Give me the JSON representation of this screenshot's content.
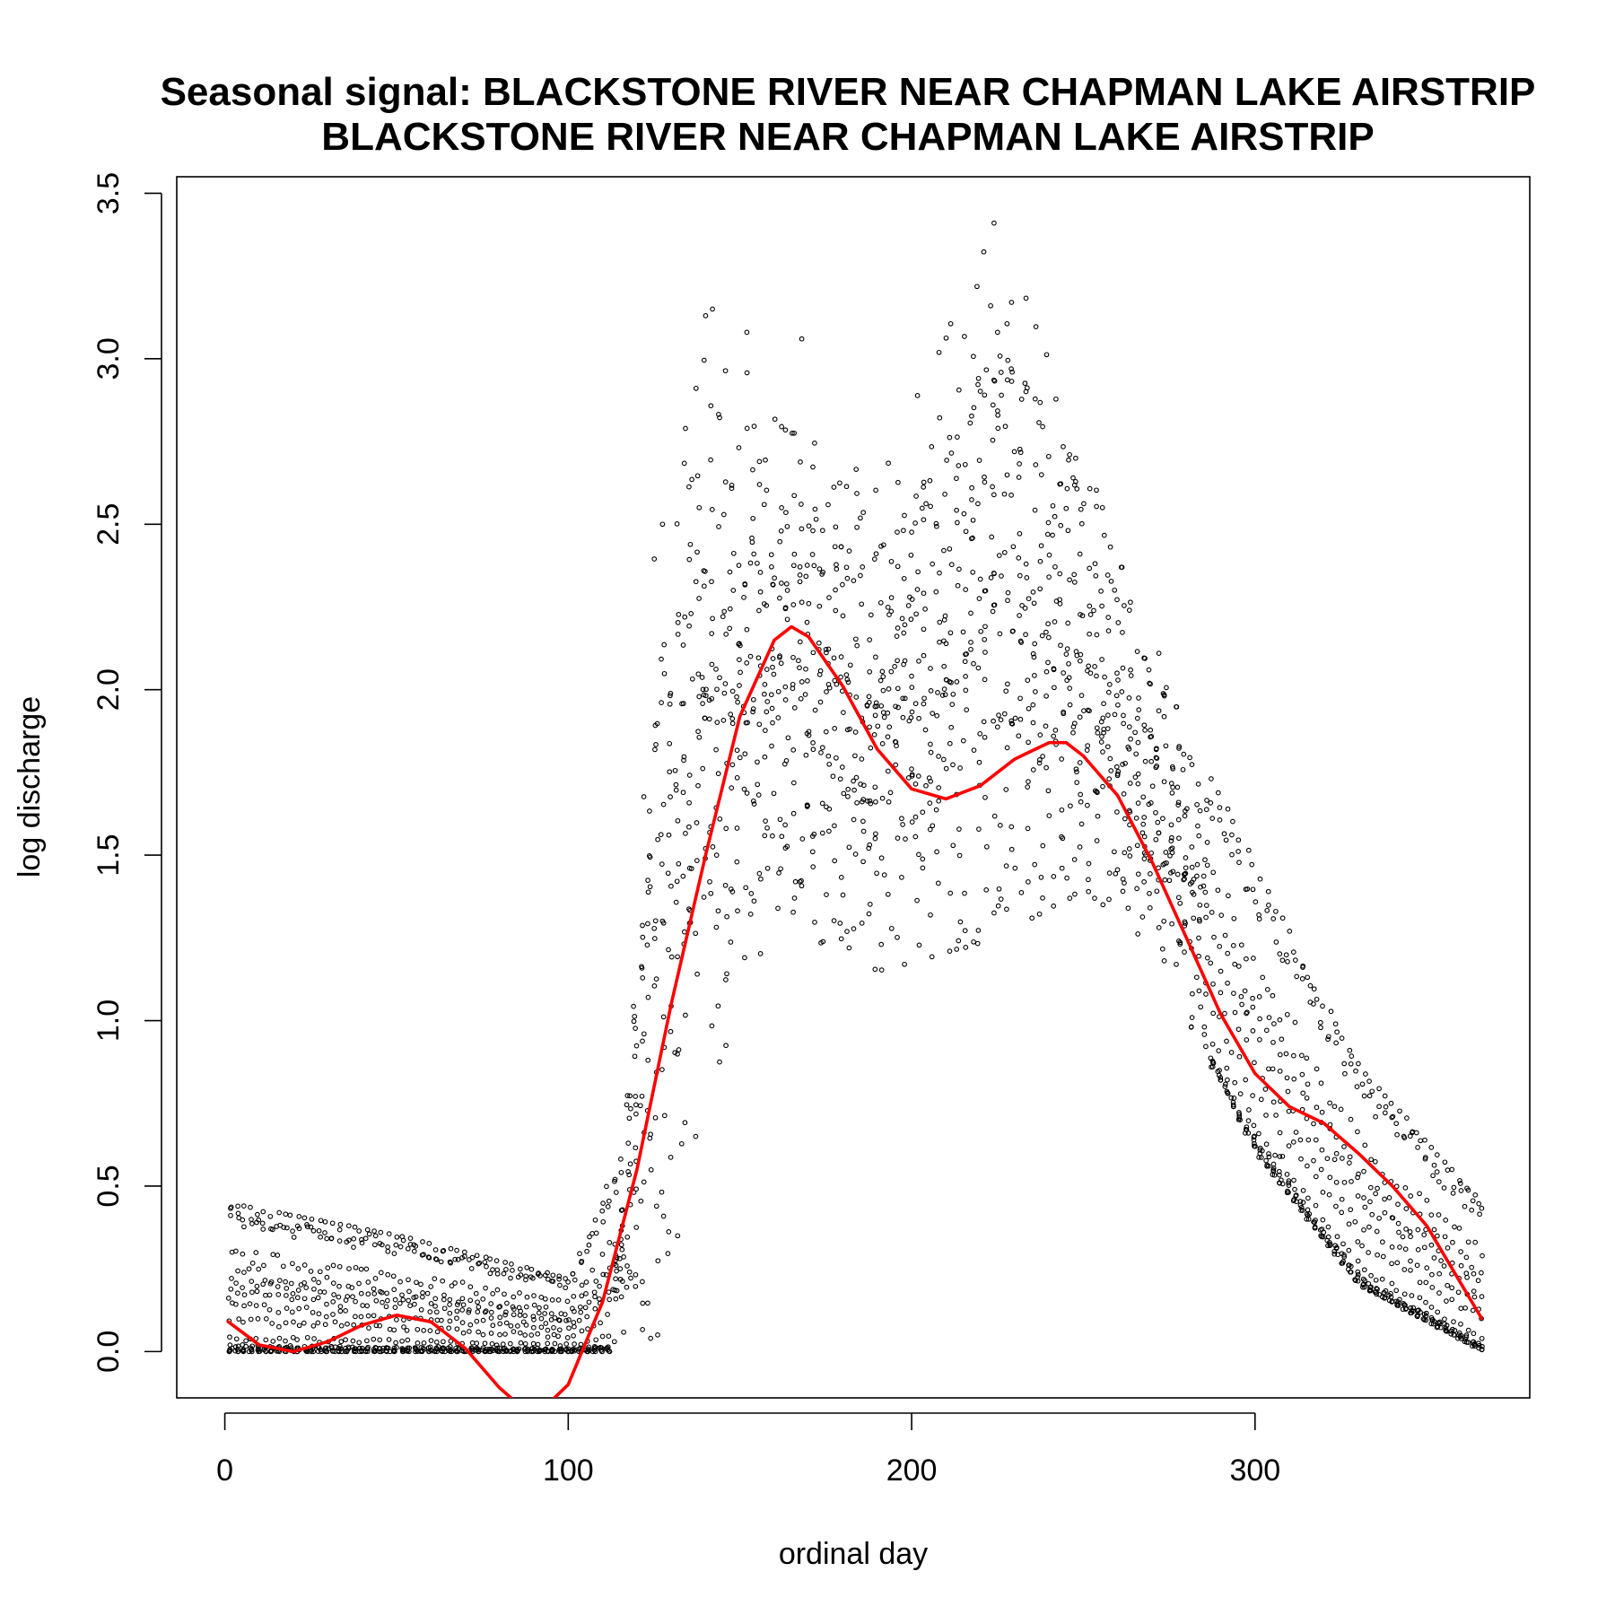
{
  "chart_data": {
    "type": "scatter",
    "title": "Seasonal signal: BLACKSTONE RIVER NEAR CHAPMAN LAKE AIRSTRIP",
    "subtitle": "BLACKSTONE RIVER NEAR CHAPMAN LAKE AIRSTRIP",
    "xlabel": "ordinal day",
    "ylabel": "log discharge",
    "xlim": [
      -14,
      380
    ],
    "ylim": [
      -0.14,
      3.55
    ],
    "xticks": [
      0,
      100,
      200,
      300
    ],
    "xtick_labels": [
      "0",
      "100",
      "200",
      "300"
    ],
    "yticks": [
      0.0,
      0.5,
      1.0,
      1.5,
      2.0,
      2.5,
      3.0,
      3.5
    ],
    "ytick_labels": [
      "0.0",
      "0.5",
      "1.0",
      "1.5",
      "2.0",
      "2.5",
      "3.0",
      "3.5"
    ],
    "grid": false,
    "legend": "none",
    "series": [
      {
        "kind": "points",
        "color": "#000000",
        "marker": "open-circle",
        "x_range": [
          1,
          366
        ],
        "envelope": [
          {
            "x": 0,
            "low": 0.0,
            "high": 0.45
          },
          {
            "x": 50,
            "low": 0.0,
            "high": 0.35
          },
          {
            "x": 100,
            "low": 0.0,
            "high": 0.22
          },
          {
            "x": 115,
            "low": 0.0,
            "high": 0.6
          },
          {
            "x": 125,
            "low": 0.05,
            "high": 2.4
          },
          {
            "x": 140,
            "low": 0.8,
            "high": 3.15
          },
          {
            "x": 160,
            "low": 1.3,
            "high": 2.8
          },
          {
            "x": 190,
            "low": 1.15,
            "high": 2.65
          },
          {
            "x": 225,
            "low": 1.25,
            "high": 3.41
          },
          {
            "x": 250,
            "low": 1.4,
            "high": 2.7
          },
          {
            "x": 270,
            "low": 1.2,
            "high": 2.1
          },
          {
            "x": 300,
            "low": 0.6,
            "high": 1.45
          },
          {
            "x": 330,
            "low": 0.2,
            "high": 0.85
          },
          {
            "x": 366,
            "low": 0.0,
            "high": 0.45
          }
        ],
        "outliers": [
          {
            "x": 224,
            "y": 3.41
          },
          {
            "x": 223,
            "y": 3.16
          },
          {
            "x": 225,
            "y": 3.08
          },
          {
            "x": 142,
            "y": 3.15
          },
          {
            "x": 140,
            "y": 3.13
          },
          {
            "x": 152,
            "y": 3.08
          },
          {
            "x": 168,
            "y": 3.06
          },
          {
            "x": 246,
            "y": 2.71
          },
          {
            "x": 247,
            "y": 2.64
          },
          {
            "x": 272,
            "y": 2.11
          },
          {
            "x": 308,
            "y": 0.59
          }
        ]
      },
      {
        "kind": "line",
        "color": "#ff0000",
        "x": [
          1,
          10,
          20,
          30,
          40,
          50,
          60,
          70,
          80,
          90,
          100,
          110,
          120,
          130,
          140,
          150,
          160,
          165,
          170,
          180,
          190,
          200,
          210,
          220,
          230,
          240,
          245,
          250,
          260,
          270,
          280,
          290,
          300,
          310,
          320,
          330,
          340,
          350,
          366
        ],
        "y": [
          0.09,
          0.02,
          0.0,
          0.03,
          0.08,
          0.11,
          0.09,
          0.01,
          -0.11,
          -0.2,
          -0.1,
          0.15,
          0.55,
          1.05,
          1.5,
          1.92,
          2.15,
          2.19,
          2.16,
          2.01,
          1.82,
          1.7,
          1.67,
          1.71,
          1.79,
          1.84,
          1.84,
          1.8,
          1.68,
          1.48,
          1.25,
          1.02,
          0.84,
          0.74,
          0.69,
          0.6,
          0.5,
          0.38,
          0.1
        ]
      }
    ]
  }
}
